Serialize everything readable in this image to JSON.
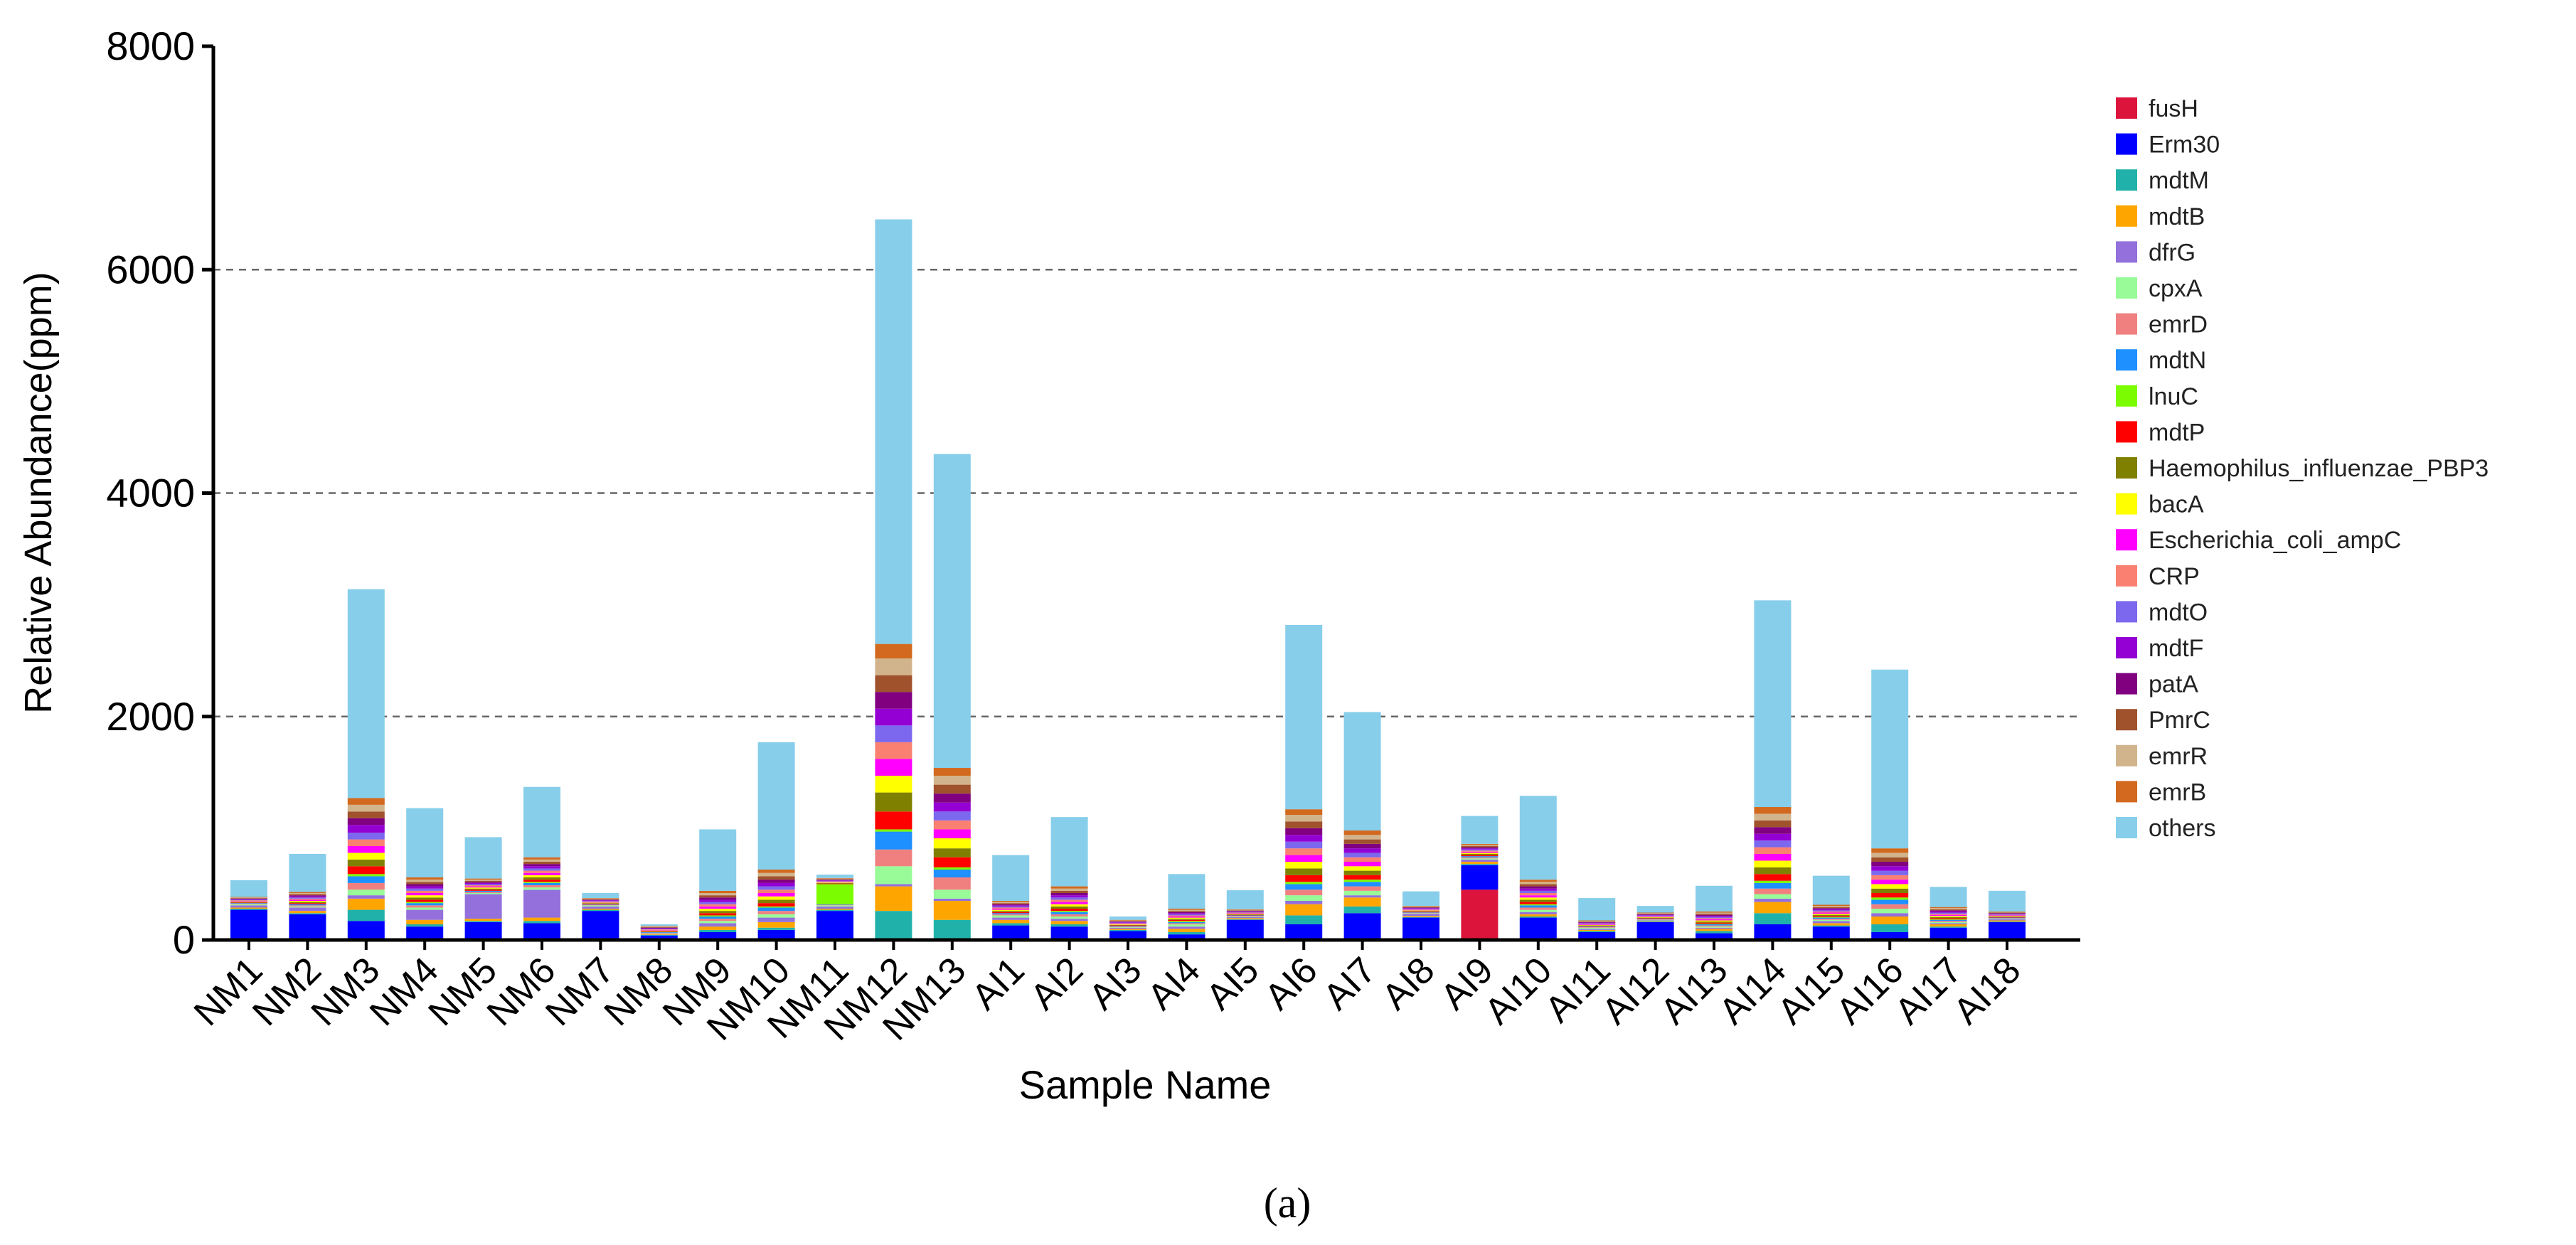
{
  "chart_data": {
    "type": "bar",
    "stacked": true,
    "title": "",
    "panel_label": "(a)",
    "xlabel": "Sample Name",
    "ylabel": "Relative Abundance(ppm)",
    "ylim": [
      0,
      8000
    ],
    "yticks": [
      0,
      2000,
      4000,
      6000,
      8000
    ],
    "ytick_labels": [
      "0",
      "2000",
      "4000",
      "6000",
      "8000"
    ],
    "grid": "dashed horizontal at 2000, 4000, 6000",
    "legend_position": "right",
    "categories": [
      "NM1",
      "NM2",
      "NM3",
      "NM4",
      "NM5",
      "NM6",
      "NM7",
      "NM8",
      "NM9",
      "NM10",
      "NM11",
      "NM12",
      "NM13",
      "AI1",
      "AI2",
      "AI3",
      "AI4",
      "AI5",
      "AI6",
      "AI7",
      "AI8",
      "AI9",
      "AI10",
      "AI11",
      "AI12",
      "AI13",
      "AI14",
      "AI15",
      "AI16",
      "AI17",
      "AI18"
    ],
    "series": [
      {
        "name": "fusH",
        "color": "#dc143c",
        "values": [
          0,
          0,
          0,
          0,
          0,
          0,
          0,
          0,
          0,
          0,
          0,
          0,
          0,
          0,
          0,
          0,
          0,
          0,
          0,
          0,
          0,
          450,
          0,
          0,
          0,
          0,
          0,
          0,
          0,
          0,
          0
        ]
      },
      {
        "name": "Erm30",
        "color": "#0000ff",
        "values": [
          270,
          230,
          170,
          120,
          160,
          150,
          260,
          40,
          70,
          90,
          260,
          0,
          0,
          130,
          120,
          80,
          50,
          180,
          140,
          240,
          200,
          220,
          200,
          70,
          160,
          60,
          140,
          120,
          70,
          110,
          160
        ]
      },
      {
        "name": "mdtM",
        "color": "#20b2aa",
        "values": [
          10,
          10,
          100,
          20,
          10,
          20,
          10,
          5,
          20,
          20,
          10,
          260,
          180,
          20,
          20,
          10,
          20,
          5,
          80,
          60,
          5,
          10,
          10,
          10,
          5,
          20,
          100,
          10,
          70,
          10,
          5
        ]
      },
      {
        "name": "mdtB",
        "color": "#ffa500",
        "values": [
          10,
          20,
          100,
          40,
          20,
          30,
          10,
          5,
          30,
          50,
          10,
          220,
          170,
          30,
          30,
          10,
          30,
          10,
          100,
          80,
          10,
          20,
          20,
          10,
          5,
          20,
          100,
          20,
          70,
          20,
          10
        ]
      },
      {
        "name": "dfrG",
        "color": "#9370db",
        "values": [
          20,
          30,
          30,
          90,
          220,
          250,
          20,
          5,
          30,
          40,
          20,
          20,
          20,
          20,
          20,
          10,
          20,
          10,
          30,
          20,
          20,
          20,
          20,
          10,
          5,
          10,
          30,
          20,
          30,
          10,
          10
        ]
      },
      {
        "name": "cpxA",
        "color": "#98fb98",
        "values": [
          10,
          10,
          50,
          20,
          10,
          20,
          10,
          5,
          20,
          30,
          10,
          160,
          80,
          20,
          20,
          5,
          20,
          5,
          50,
          40,
          5,
          10,
          20,
          10,
          5,
          10,
          40,
          10,
          40,
          10,
          5
        ]
      },
      {
        "name": "emrD",
        "color": "#f08080",
        "values": [
          5,
          10,
          60,
          20,
          10,
          20,
          5,
          5,
          20,
          30,
          5,
          150,
          110,
          10,
          20,
          5,
          10,
          5,
          50,
          40,
          5,
          10,
          20,
          5,
          5,
          10,
          50,
          10,
          40,
          10,
          5
        ]
      },
      {
        "name": "mdtN",
        "color": "#1e90ff",
        "values": [
          5,
          10,
          60,
          20,
          10,
          20,
          5,
          5,
          20,
          30,
          5,
          160,
          70,
          10,
          20,
          5,
          10,
          5,
          50,
          40,
          5,
          10,
          20,
          5,
          5,
          10,
          50,
          10,
          40,
          10,
          5
        ]
      },
      {
        "name": "lnuC",
        "color": "#7cfc00",
        "values": [
          0,
          0,
          20,
          10,
          0,
          10,
          0,
          0,
          10,
          10,
          180,
          20,
          20,
          0,
          10,
          0,
          10,
          0,
          20,
          20,
          0,
          0,
          10,
          0,
          0,
          5,
          20,
          5,
          20,
          5,
          0
        ]
      },
      {
        "name": "mdtP",
        "color": "#ff0000",
        "values": [
          5,
          10,
          70,
          20,
          10,
          20,
          5,
          5,
          20,
          30,
          5,
          160,
          90,
          10,
          20,
          5,
          10,
          5,
          60,
          40,
          5,
          10,
          20,
          5,
          5,
          10,
          60,
          10,
          40,
          10,
          5
        ]
      },
      {
        "name": "Haemophilus_influenzae_PBP3",
        "color": "#808000",
        "values": [
          5,
          10,
          60,
          20,
          10,
          20,
          5,
          5,
          20,
          30,
          5,
          170,
          80,
          10,
          20,
          5,
          10,
          5,
          60,
          40,
          5,
          10,
          20,
          5,
          5,
          10,
          60,
          10,
          40,
          10,
          5
        ]
      },
      {
        "name": "bacA",
        "color": "#ffff00",
        "values": [
          5,
          10,
          60,
          20,
          10,
          20,
          5,
          5,
          20,
          30,
          5,
          150,
          90,
          10,
          20,
          5,
          10,
          5,
          60,
          40,
          5,
          10,
          20,
          5,
          5,
          10,
          60,
          10,
          40,
          10,
          5
        ]
      },
      {
        "name": "Escherichia_coli_ampC",
        "color": "#ff00ff",
        "values": [
          5,
          10,
          60,
          20,
          10,
          20,
          5,
          5,
          20,
          30,
          5,
          150,
          80,
          10,
          20,
          5,
          10,
          5,
          60,
          40,
          5,
          10,
          20,
          5,
          5,
          10,
          60,
          10,
          40,
          10,
          5
        ]
      },
      {
        "name": "CRP",
        "color": "#fa8072",
        "values": [
          5,
          10,
          60,
          20,
          10,
          20,
          5,
          5,
          20,
          30,
          5,
          150,
          80,
          10,
          20,
          5,
          10,
          5,
          60,
          40,
          5,
          10,
          20,
          5,
          5,
          10,
          60,
          10,
          40,
          10,
          5
        ]
      },
      {
        "name": "mdtO",
        "color": "#7b68ee",
        "values": [
          5,
          10,
          60,
          20,
          10,
          20,
          5,
          5,
          20,
          30,
          5,
          150,
          80,
          10,
          20,
          5,
          10,
          5,
          60,
          40,
          5,
          10,
          20,
          5,
          5,
          10,
          60,
          10,
          40,
          10,
          5
        ]
      },
      {
        "name": "mdtF",
        "color": "#9400d3",
        "values": [
          5,
          10,
          70,
          20,
          10,
          20,
          5,
          5,
          20,
          30,
          5,
          150,
          80,
          10,
          20,
          5,
          10,
          5,
          60,
          40,
          5,
          10,
          20,
          5,
          5,
          10,
          60,
          10,
          40,
          10,
          5
        ]
      },
      {
        "name": "patA",
        "color": "#800080",
        "values": [
          5,
          10,
          60,
          20,
          10,
          20,
          5,
          5,
          20,
          30,
          5,
          150,
          80,
          10,
          20,
          5,
          10,
          5,
          60,
          40,
          5,
          10,
          20,
          5,
          5,
          10,
          60,
          10,
          40,
          10,
          5
        ]
      },
      {
        "name": "PmrC",
        "color": "#a0522d",
        "values": [
          5,
          10,
          60,
          20,
          10,
          20,
          5,
          5,
          20,
          30,
          5,
          150,
          80,
          10,
          20,
          5,
          10,
          5,
          60,
          40,
          5,
          10,
          20,
          5,
          5,
          10,
          60,
          10,
          40,
          10,
          5
        ]
      },
      {
        "name": "emrR",
        "color": "#d2b48c",
        "values": [
          5,
          10,
          60,
          20,
          10,
          20,
          5,
          5,
          20,
          30,
          5,
          150,
          80,
          10,
          20,
          5,
          10,
          5,
          60,
          40,
          5,
          10,
          20,
          5,
          5,
          10,
          60,
          10,
          40,
          10,
          5
        ]
      },
      {
        "name": "emrB",
        "color": "#d2691e",
        "values": [
          5,
          10,
          60,
          20,
          10,
          20,
          5,
          5,
          20,
          30,
          5,
          130,
          70,
          10,
          20,
          5,
          10,
          5,
          50,
          40,
          5,
          10,
          20,
          5,
          5,
          10,
          60,
          10,
          40,
          10,
          5
        ]
      },
      {
        "name": "others",
        "color": "#87ceeb",
        "values": [
          150,
          340,
          1870,
          620,
          370,
          630,
          45,
          15,
          550,
          1140,
          30,
          3800,
          2810,
          410,
          620,
          30,
          310,
          170,
          1650,
          1060,
          130,
          250,
          750,
          200,
          60,
          230,
          1850,
          260,
          1600,
          180,
          185
        ]
      }
    ]
  }
}
